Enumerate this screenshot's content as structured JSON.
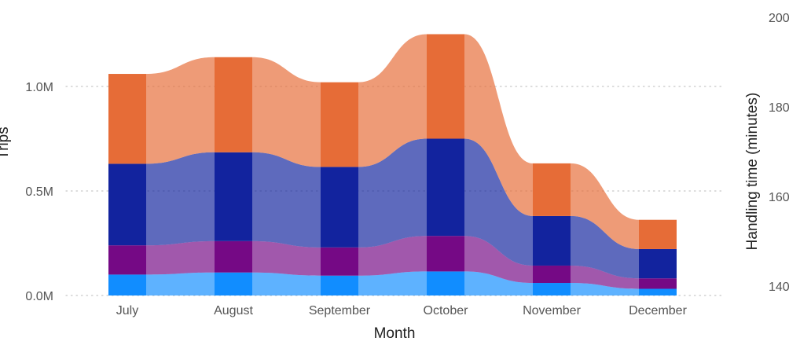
{
  "chart_data": {
    "type": "area",
    "subtype": "ribbon-stacked",
    "x_label": "Month",
    "y_label": "Trips",
    "y2_label": "Handling time (minutes)",
    "categories": [
      "July",
      "August",
      "September",
      "October",
      "November",
      "December"
    ],
    "y_ticks": [
      "0.0M",
      "0.5M",
      "1.0M"
    ],
    "y_lim": [
      0,
      1300000
    ],
    "y2_ticks": [
      "140",
      "160",
      "180",
      "200"
    ],
    "y2_lim": [
      135,
      201
    ],
    "grid": "horizontal dotted",
    "series": [
      {
        "color": "#118DFF",
        "values": [
          100000,
          110000,
          95000,
          115000,
          60000,
          32000
        ]
      },
      {
        "color": "#750985",
        "values": [
          140000,
          150000,
          135000,
          170000,
          83000,
          50000
        ]
      },
      {
        "color": "#12239E",
        "values": [
          390000,
          425000,
          385000,
          465000,
          237000,
          140000
        ]
      },
      {
        "color": "#E66C37",
        "values": [
          430000,
          455000,
          405000,
          500000,
          252000,
          140000
        ]
      }
    ]
  }
}
